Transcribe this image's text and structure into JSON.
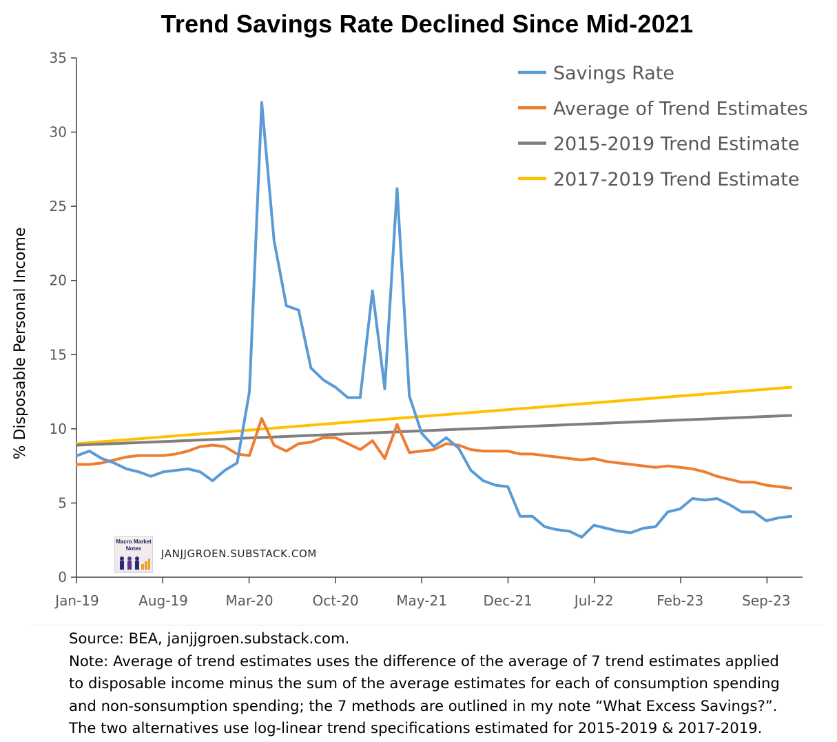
{
  "chart_data": {
    "type": "line",
    "title": "Trend Savings Rate Declined Since Mid-2021",
    "ylabel": "% Disposable Personal Income",
    "xlabel": "",
    "ylim": [
      0,
      35
    ],
    "yticks": [
      0,
      5,
      10,
      15,
      20,
      25,
      30,
      35
    ],
    "x_tick_labels": [
      "Jan-19",
      "Aug-19",
      "Mar-20",
      "Oct-20",
      "May-21",
      "Dec-21",
      "Jul-22",
      "Feb-23",
      "Sep-23"
    ],
    "x_start": "2019-01",
    "legend_position": "top-right",
    "grid": false,
    "series": [
      {
        "name": "Savings Rate",
        "color": "#5b9bd5",
        "values": [
          8.2,
          8.5,
          8.0,
          7.7,
          7.3,
          7.1,
          6.8,
          7.1,
          7.2,
          7.3,
          7.1,
          6.5,
          7.2,
          7.7,
          12.5,
          32.0,
          22.7,
          18.3,
          18.0,
          14.1,
          13.3,
          12.8,
          12.1,
          12.1,
          19.3,
          12.7,
          26.2,
          12.2,
          9.7,
          8.8,
          9.4,
          8.7,
          7.2,
          6.5,
          6.2,
          6.1,
          4.1,
          4.1,
          3.4,
          3.2,
          3.1,
          2.7,
          3.5,
          3.3,
          3.1,
          3.0,
          3.3,
          3.4,
          4.4,
          4.6,
          5.3,
          5.2,
          5.3,
          4.9,
          4.4,
          4.4,
          3.8,
          4.0,
          4.1
        ]
      },
      {
        "name": "Average of Trend Estimates",
        "color": "#ed7d31",
        "values": [
          7.6,
          7.6,
          7.7,
          7.9,
          8.1,
          8.2,
          8.2,
          8.2,
          8.3,
          8.5,
          8.8,
          8.9,
          8.8,
          8.3,
          8.2,
          10.7,
          8.9,
          8.5,
          9.0,
          9.1,
          9.4,
          9.4,
          9.0,
          8.6,
          9.2,
          8.0,
          10.3,
          8.4,
          8.5,
          8.6,
          9.0,
          8.9,
          8.6,
          8.5,
          8.5,
          8.5,
          8.3,
          8.3,
          8.2,
          8.1,
          8.0,
          7.9,
          8.0,
          7.8,
          7.7,
          7.6,
          7.5,
          7.4,
          7.5,
          7.4,
          7.3,
          7.1,
          6.8,
          6.6,
          6.4,
          6.4,
          6.2,
          6.1,
          6.0
        ]
      },
      {
        "name": "2015-2019 Trend Estimate",
        "color": "#7f7f7f",
        "start": 8.9,
        "end": 10.9
      },
      {
        "name": "2017-2019 Trend Estimate",
        "color": "#ffc000",
        "start": 9.0,
        "end": 12.8
      }
    ]
  },
  "watermark": {
    "text": "JANJJGROEN.SUBSTACK.COM",
    "logo_text_line1": "Macro Market",
    "logo_text_line2": "Notes"
  },
  "notes": {
    "source": "Source: BEA, janjjgroen.substack.com.",
    "note_line1": "Note: Average of trend estimates uses the difference of the average of 7 trend estimates applied",
    "note_line2": "to disposable income minus the sum of the average estimates for each of consumption spending",
    "note_line3": "and non-sonsumption spending; the 7 methods are outlined in my note “What Excess Savings?”.",
    "note_line4": "The two alternatives use log-linear trend specifications estimated for 2015-2019 & 2017-2019."
  }
}
